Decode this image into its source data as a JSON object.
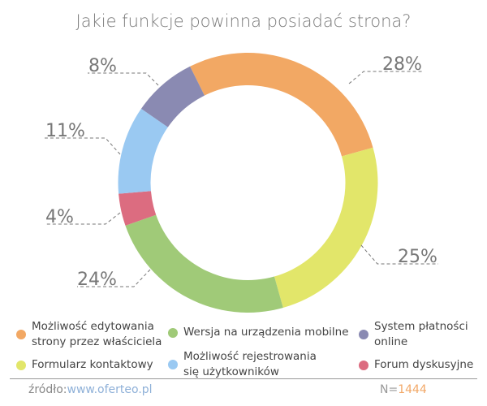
{
  "chart_data": {
    "type": "pie",
    "donut": true,
    "title": "Jakie funkcje powinna posiadać strona?",
    "categories": [
      "Możliwość edytowania strony przez właściciela",
      "Formularz kontaktowy",
      "Wersja na urządzenia mobilne",
      "Forum dyskusyjne",
      "Możliwość rejestrowania się użytkowników",
      "System płatności online"
    ],
    "values": [
      28,
      25,
      24,
      4,
      11,
      8
    ],
    "labels": [
      "28%",
      "25%",
      "24%",
      "4%",
      "11%",
      "8%"
    ],
    "colors": [
      "#f2a864",
      "#e2e66a",
      "#a0ca78",
      "#dc6c80",
      "#9ac9f2",
      "#8a8ab2"
    ],
    "legend_position": "bottom"
  },
  "legend": [
    {
      "label1": "Możliwość edytowania",
      "label2": "strony przez właściciela"
    },
    {
      "label1": "Wersja na urządzenia mobilne",
      "label2": ""
    },
    {
      "label1": "System płatności",
      "label2": "online"
    },
    {
      "label1": "Formularz kontaktowy",
      "label2": ""
    },
    {
      "label1": "Możliwość rejestrowania",
      "label2": "się użytkowników"
    },
    {
      "label1": "Forum dyskusyjne",
      "label2": ""
    }
  ],
  "footer": {
    "source_label": "źródło:",
    "source_link": "www.oferteo.pl",
    "n_label": "N=",
    "n_value": "1444"
  }
}
